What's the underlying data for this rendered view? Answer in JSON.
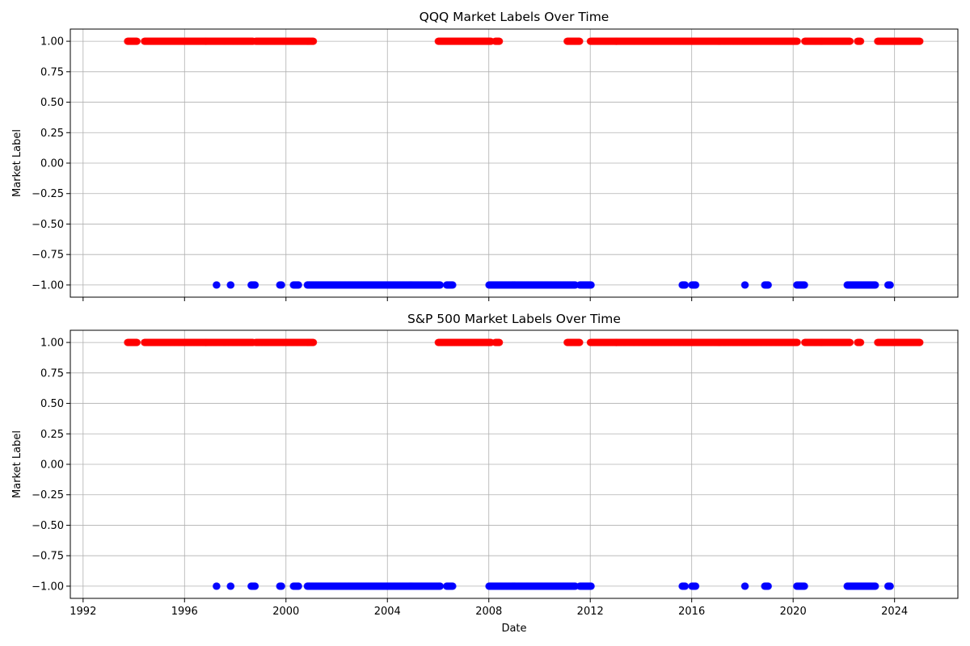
{
  "chart_data": [
    {
      "type": "scatter",
      "title": "QQQ Market Labels Over Time",
      "xlabel": "",
      "ylabel": "Market Label",
      "x_tick_labels_visible": false,
      "x_ticks": [
        "1992",
        "1996",
        "2000",
        "2004",
        "2008",
        "2012",
        "2016",
        "2020",
        "2024"
      ],
      "y_ticks": [
        "−1.00",
        "−0.75",
        "−0.50",
        "−0.25",
        "0.00",
        "0.25",
        "0.50",
        "0.75",
        "1.00"
      ],
      "xlim": [
        "1991-07-01",
        "2026-07-01"
      ],
      "ylim": [
        -1.1,
        1.1
      ],
      "grid": true,
      "colors": {
        "1": "#ff0000",
        "-1": "#0000ff"
      },
      "series": [
        {
          "y": 1,
          "date_ranges": [
            [
              "1993-10-01",
              "1994-02-15"
            ],
            [
              "1994-06-01",
              "1998-09-15"
            ],
            [
              "1998-10-20",
              "2001-01-31"
            ],
            [
              "2006-01-01",
              "2008-02-01"
            ],
            [
              "2008-04-01",
              "2008-06-01"
            ],
            [
              "2011-02-01",
              "2011-08-01"
            ],
            [
              "2012-01-01",
              "2020-03-01"
            ],
            [
              "2020-06-15",
              "2022-04-01"
            ],
            [
              "2022-07-15",
              "2022-08-31"
            ],
            [
              "2023-05-01",
              "2024-12-31"
            ]
          ]
        },
        {
          "y": -1,
          "date_ranges": [
            [
              "1997-04-01",
              "1997-04-10"
            ],
            [
              "1997-10-20",
              "1997-10-31"
            ],
            [
              "1998-08-15",
              "1998-10-15"
            ],
            [
              "1999-10-01",
              "1999-11-01"
            ],
            [
              "2000-04-15",
              "2000-07-01"
            ],
            [
              "2000-11-01",
              "2006-01-31"
            ],
            [
              "2006-05-01",
              "2006-08-01"
            ],
            [
              "2008-01-01",
              "2011-06-01"
            ],
            [
              "2011-08-01",
              "2012-01-15"
            ],
            [
              "2015-08-15",
              "2015-10-01"
            ],
            [
              "2016-01-01",
              "2016-03-01"
            ],
            [
              "2018-02-01",
              "2018-02-10"
            ],
            [
              "2018-11-15",
              "2019-01-10"
            ],
            [
              "2020-02-20",
              "2020-06-15"
            ],
            [
              "2022-02-15",
              "2023-04-01"
            ],
            [
              "2023-09-25",
              "2023-11-01"
            ]
          ]
        }
      ]
    },
    {
      "type": "scatter",
      "title": "S&P 500 Market Labels Over Time",
      "xlabel": "Date",
      "ylabel": "Market Label",
      "x_tick_labels_visible": true,
      "x_ticks": [
        "1992",
        "1996",
        "2000",
        "2004",
        "2008",
        "2012",
        "2016",
        "2020",
        "2024"
      ],
      "y_ticks": [
        "−1.00",
        "−0.75",
        "−0.50",
        "−0.25",
        "0.00",
        "0.25",
        "0.50",
        "0.75",
        "1.00"
      ],
      "xlim": [
        "1991-07-01",
        "2026-07-01"
      ],
      "ylim": [
        -1.1,
        1.1
      ],
      "grid": true,
      "colors": {
        "1": "#ff0000",
        "-1": "#0000ff"
      },
      "series": [
        {
          "y": 1,
          "date_ranges": [
            [
              "1993-10-01",
              "1994-02-15"
            ],
            [
              "1994-06-01",
              "1998-09-15"
            ],
            [
              "1998-10-20",
              "2001-01-31"
            ],
            [
              "2006-01-01",
              "2008-02-01"
            ],
            [
              "2008-04-01",
              "2008-06-01"
            ],
            [
              "2011-02-01",
              "2011-08-01"
            ],
            [
              "2012-01-01",
              "2020-03-01"
            ],
            [
              "2020-06-15",
              "2022-04-01"
            ],
            [
              "2022-07-15",
              "2022-08-31"
            ],
            [
              "2023-05-01",
              "2024-12-31"
            ]
          ]
        },
        {
          "y": -1,
          "date_ranges": [
            [
              "1997-04-01",
              "1997-04-10"
            ],
            [
              "1997-10-20",
              "1997-10-31"
            ],
            [
              "1998-08-15",
              "1998-10-15"
            ],
            [
              "1999-10-01",
              "1999-11-01"
            ],
            [
              "2000-04-15",
              "2000-07-01"
            ],
            [
              "2000-11-01",
              "2006-01-31"
            ],
            [
              "2006-05-01",
              "2006-08-01"
            ],
            [
              "2008-01-01",
              "2011-06-01"
            ],
            [
              "2011-08-01",
              "2012-01-15"
            ],
            [
              "2015-08-15",
              "2015-10-01"
            ],
            [
              "2016-01-01",
              "2016-03-01"
            ],
            [
              "2018-02-01",
              "2018-02-10"
            ],
            [
              "2018-11-15",
              "2019-01-10"
            ],
            [
              "2020-02-20",
              "2020-06-15"
            ],
            [
              "2022-02-15",
              "2023-04-01"
            ],
            [
              "2023-09-25",
              "2023-11-01"
            ]
          ]
        }
      ]
    }
  ]
}
